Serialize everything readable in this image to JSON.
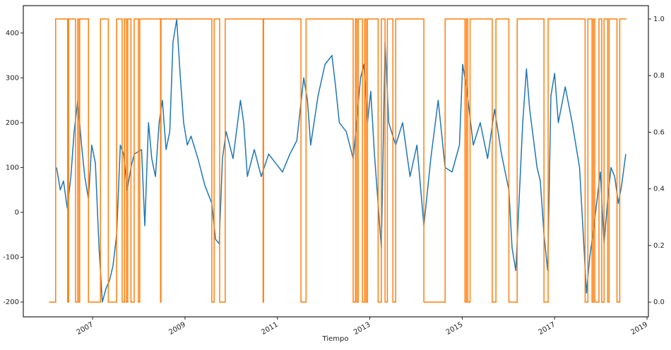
{
  "chart_data": {
    "type": "line",
    "x_label": "Tiempo",
    "xlim": [
      2005.5,
      2019.03
    ],
    "xticks": [
      2007,
      2009,
      2011,
      2013,
      2015,
      2017,
      2019
    ],
    "ylim": [
      -233,
      461
    ],
    "yticks": [
      -200,
      -100,
      0,
      100,
      200,
      300,
      400
    ],
    "y2lim": [
      -0.052,
      1.047
    ],
    "y2ticks": [
      {
        "value": 0,
        "label": "0.0"
      },
      0.2,
      0.4,
      0.6,
      0.8,
      {
        "value": 1,
        "label": "1.0"
      }
    ],
    "grid": false,
    "series": [
      {
        "color": "#1f77b4",
        "x": [
          2006.22,
          2006.3,
          2006.37,
          2006.45,
          2006.53,
          2006.6,
          2006.68,
          2006.76,
          2006.83,
          2006.91,
          2006.98,
          2007.06,
          2007.14,
          2007.21,
          2007.29,
          2007.37,
          2007.44,
          2007.52,
          2007.6,
          2007.67,
          2007.75,
          2007.83,
          2007.9,
          2008.06,
          2008.13,
          2008.21,
          2008.28,
          2008.36,
          2008.44,
          2008.51,
          2008.59,
          2008.67,
          2008.74,
          2008.82,
          2008.9,
          2008.97,
          2009.05,
          2009.13,
          2009.28,
          2009.43,
          2009.58,
          2009.66,
          2009.74,
          2009.81,
          2009.89,
          2010.04,
          2010.2,
          2010.27,
          2010.35,
          2010.5,
          2010.65,
          2010.81,
          2010.96,
          2011.11,
          2011.27,
          2011.42,
          2011.57,
          2011.65,
          2011.72,
          2011.88,
          2012.03,
          2012.18,
          2012.26,
          2012.34,
          2012.49,
          2012.64,
          2012.8,
          2012.87,
          2012.95,
          2013.02,
          2013.1,
          2013.25,
          2013.33,
          2013.41,
          2013.56,
          2013.71,
          2013.87,
          2014.02,
          2014.17,
          2014.32,
          2014.48,
          2014.55,
          2014.63,
          2014.78,
          2014.94,
          2015.01,
          2015.09,
          2015.24,
          2015.39,
          2015.55,
          2015.7,
          2015.85,
          2016.01,
          2016.08,
          2016.16,
          2016.31,
          2016.39,
          2016.46,
          2016.62,
          2016.69,
          2016.77,
          2016.85,
          2016.92,
          2017.0,
          2017.08,
          2017.23,
          2017.38,
          2017.54,
          2017.69,
          2017.76,
          2017.84,
          2017.99,
          2018.07,
          2018.15,
          2018.22,
          2018.3,
          2018.38,
          2018.45,
          2018.54
        ],
        "values": [
          100,
          50,
          70,
          10,
          80,
          180,
          250,
          150,
          80,
          30,
          150,
          110,
          -80,
          -200,
          -170,
          -150,
          -120,
          -50,
          150,
          130,
          50,
          100,
          130,
          140,
          -30,
          200,
          120,
          80,
          200,
          250,
          140,
          180,
          380,
          430,
          300,
          200,
          150,
          170,
          120,
          60,
          20,
          -60,
          -70,
          120,
          180,
          120,
          250,
          200,
          80,
          140,
          80,
          130,
          110,
          90,
          130,
          160,
          300,
          250,
          150,
          260,
          330,
          350,
          280,
          200,
          180,
          120,
          300,
          330,
          200,
          270,
          130,
          -80,
          380,
          200,
          150,
          200,
          80,
          150,
          -30,
          120,
          250,
          180,
          100,
          90,
          150,
          330,
          280,
          150,
          200,
          120,
          230,
          130,
          50,
          -80,
          -130,
          200,
          320,
          230,
          100,
          70,
          -50,
          -130,
          260,
          310,
          200,
          280,
          200,
          100,
          -180,
          -100,
          -40,
          90,
          -70,
          30,
          100,
          80,
          20,
          60,
          130
        ]
      },
      {
        "color": "#ff7f0e",
        "axis": "y2",
        "step": true,
        "x": [
          2006.07,
          2006.2,
          2006.46,
          2006.48,
          2006.63,
          2006.68,
          2006.69,
          2006.72,
          2006.91,
          2007.17,
          2007.34,
          2007.52,
          2007.64,
          2007.69,
          2007.73,
          2007.76,
          2007.83,
          2007.9,
          2007.99,
          2008.02,
          2008.47,
          2008.48,
          2009.58,
          2009.63,
          2009.75,
          2009.87,
          2010.69,
          2010.7,
          2011.51,
          2011.62,
          2012.64,
          2012.69,
          2012.72,
          2012.75,
          2012.84,
          2012.89,
          2012.92,
          2012.95,
          2013.18,
          2013.25,
          2013.33,
          2013.38,
          2013.5,
          2013.56,
          2014.17,
          2014.63,
          2015.06,
          2015.09,
          2015.12,
          2015.17,
          2015.65,
          2015.73,
          2016.01,
          2016.19,
          2016.77,
          2016.86,
          2017.66,
          2017.72,
          2017.81,
          2017.84,
          2017.87,
          2017.96,
          2018.02,
          2018.07,
          2018.15,
          2018.18,
          2018.35,
          2018.41,
          2018.54
        ],
        "values": [
          0,
          1,
          0,
          1,
          0,
          1,
          0,
          1,
          0,
          1,
          0,
          1,
          0,
          1,
          0,
          1,
          0,
          1,
          0,
          1,
          0,
          1,
          0,
          1,
          0,
          1,
          0,
          1,
          0,
          1,
          0,
          1,
          0,
          1,
          0,
          1,
          0,
          1,
          0,
          1,
          0,
          1,
          0,
          1,
          0,
          1,
          0,
          1,
          0,
          1,
          0,
          1,
          0,
          1,
          0,
          1,
          0,
          1,
          0,
          1,
          0,
          1,
          0,
          1,
          0,
          1,
          0,
          1,
          1
        ]
      }
    ]
  }
}
